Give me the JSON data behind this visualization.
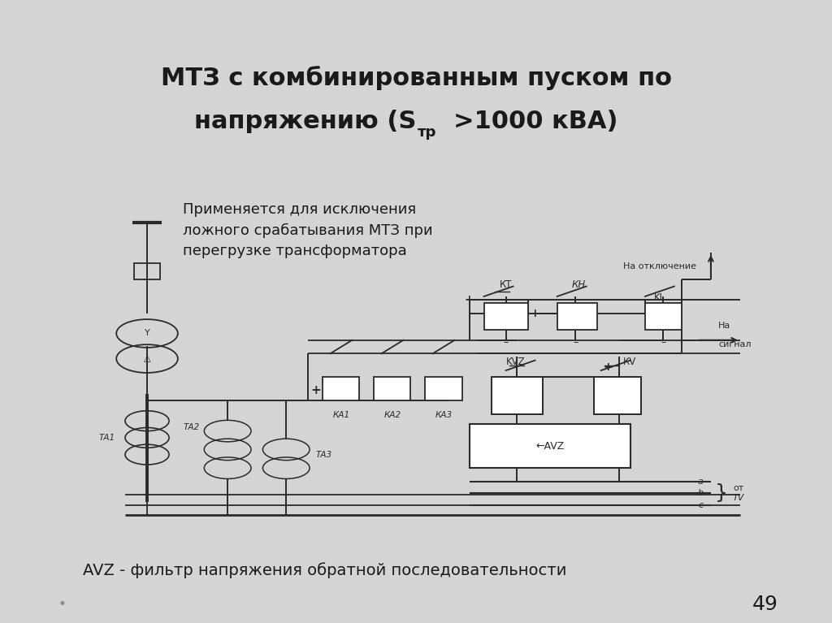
{
  "title_line1": "МТЗ с комбинированным пуском по",
  "title_line2_pre": "напряжению (S",
  "title_sub": "тр",
  "title_line2_post": ">1000 кВА)",
  "desc1": "Применяется для исключения",
  "desc2": "ложного срабатывания МТЗ при",
  "desc3": "перегрузке трансформатора",
  "bottom_text": "AVZ - фильтр напряжения обратной последовательности",
  "page_number": "49",
  "bg_color": "#d4d4d4",
  "diagram_bg": "#f5f5f5",
  "lc": "#2a2a2a"
}
